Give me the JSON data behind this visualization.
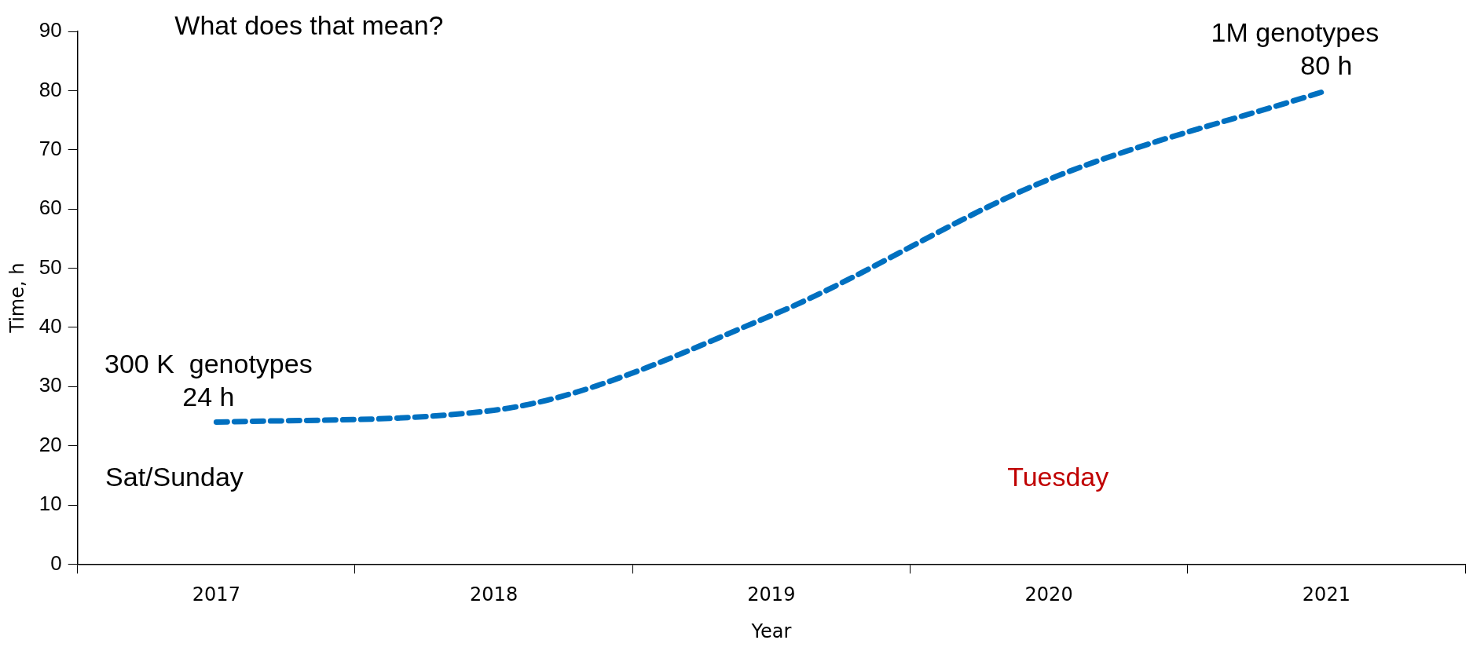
{
  "chart_data": {
    "type": "line",
    "xlabel": "Year",
    "ylabel": "Time, h",
    "categories": [
      "2017",
      "2018",
      "2019",
      "2020",
      "2021"
    ],
    "series": [
      {
        "color": "#0070c0",
        "values": [
          24,
          26,
          42,
          65,
          80
        ]
      }
    ],
    "ylim": [
      0,
      90
    ],
    "yticks": [
      0,
      10,
      20,
      30,
      40,
      50,
      60,
      70,
      80,
      90
    ],
    "grid": false,
    "legend": false,
    "marker": "none",
    "line_style": "dashed",
    "annotations": [
      "What does that mean?",
      {
        "text": "300 K  genotypes\n24 h",
        "x": "2017",
        "y": 24
      },
      {
        "text": "1M genotypes\n80 h",
        "x": "2021",
        "y": 80
      },
      "Sat/Sunday",
      "Tuesday"
    ]
  }
}
